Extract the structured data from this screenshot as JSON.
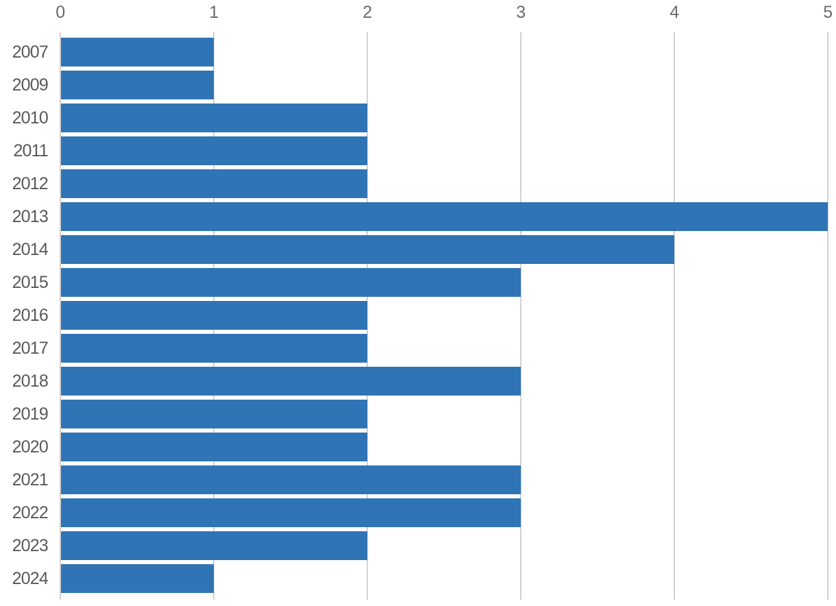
{
  "chart_data": {
    "type": "bar",
    "orientation": "horizontal",
    "title": "",
    "xlabel": "",
    "ylabel": "",
    "categories": [
      "2007",
      "2009",
      "2010",
      "2011",
      "2012",
      "2013",
      "2014",
      "2015",
      "2016",
      "2017",
      "2018",
      "2019",
      "2020",
      "2021",
      "2022",
      "2023",
      "2024"
    ],
    "values": [
      1,
      1,
      2,
      2,
      2,
      5,
      4,
      3,
      2,
      2,
      3,
      2,
      2,
      3,
      3,
      2,
      1
    ],
    "x_ticks": [
      "0",
      "1",
      "2",
      "3",
      "4",
      "5"
    ],
    "xlim": [
      0,
      5
    ],
    "x_axis_position": "top",
    "grid": true,
    "legend_position": "none",
    "colors": {
      "bar": "#2f74b5",
      "gridline": "#d2d2d2",
      "tick_label": "#6a6b6d",
      "category_label": "#58595c",
      "background": "#ffffff"
    }
  }
}
